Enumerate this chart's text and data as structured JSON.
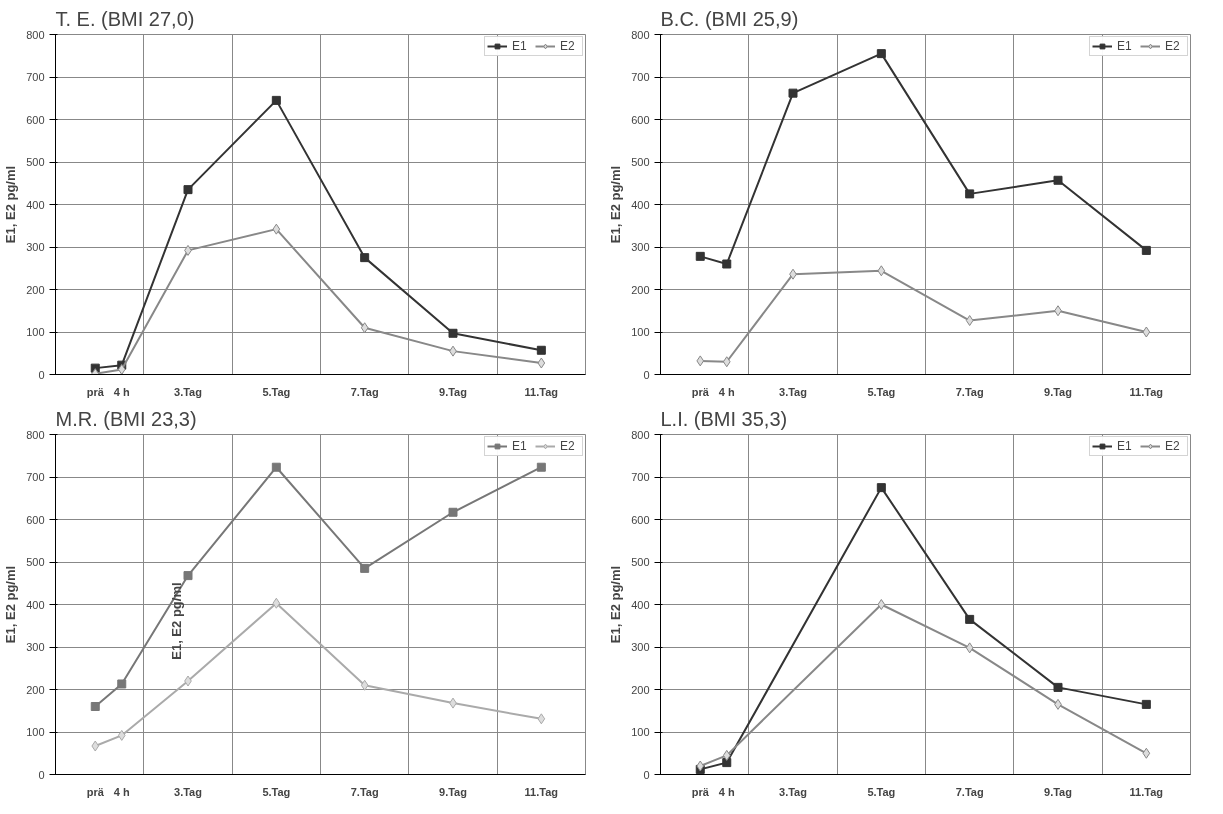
{
  "chart_data": [
    {
      "type": "line",
      "title": "T. E. (BMI 27,0)",
      "ylabel": "E1, E2 pg/ml",
      "categories": [
        "prä",
        "4 h",
        "3.Tag",
        "5.Tag",
        "7.Tag",
        "9.Tag",
        "11.Tag"
      ],
      "ylim": [
        0,
        800
      ],
      "yticks": [
        0,
        100,
        200,
        300,
        400,
        500,
        600,
        700,
        800
      ],
      "grid": true,
      "legend": "top right",
      "series": [
        {
          "name": "E1",
          "color": "#333333",
          "marker": "square",
          "values": [
            15,
            22,
            435,
            645,
            275,
            97,
            57
          ]
        },
        {
          "name": "E2",
          "color": "#888888",
          "marker": "diamond",
          "values": [
            2,
            12,
            292,
            342,
            110,
            55,
            27
          ]
        }
      ]
    },
    {
      "type": "line",
      "title": "B.C. (BMI 25,9)",
      "ylabel": "E1, E2 pg/ml",
      "categories": [
        "prä",
        "4 h",
        "3.Tag",
        "5.Tag",
        "7.Tag",
        "9.Tag",
        "11.Tag"
      ],
      "ylim": [
        0,
        800
      ],
      "yticks": [
        0,
        100,
        200,
        300,
        400,
        500,
        600,
        700,
        800
      ],
      "grid": true,
      "legend": "top right",
      "series": [
        {
          "name": "E1",
          "color": "#333333",
          "marker": "square",
          "values": [
            278,
            260,
            662,
            755,
            425,
            457,
            292
          ]
        },
        {
          "name": "E2",
          "color": "#888888",
          "marker": "diamond",
          "values": [
            32,
            30,
            236,
            244,
            127,
            150,
            100
          ]
        }
      ]
    },
    {
      "type": "line",
      "title": "M.R. (BMI 23,3)",
      "ylabel": "E1, E2 pg/ml",
      "annotations": [
        "E1, E2 pg/ml"
      ],
      "categories": [
        "prä",
        "4 h",
        "3.Tag",
        "5.Tag",
        "7.Tag",
        "9.Tag",
        "11.Tag"
      ],
      "ylim": [
        0,
        800
      ],
      "yticks": [
        0,
        100,
        200,
        300,
        400,
        500,
        600,
        700,
        800
      ],
      "grid": true,
      "legend": "top right",
      "series": [
        {
          "name": "E1",
          "color": "#777777",
          "marker": "square",
          "values": [
            160,
            213,
            468,
            723,
            485,
            617,
            723
          ]
        },
        {
          "name": "E2",
          "color": "#aaaaaa",
          "marker": "diamond",
          "values": [
            67,
            92,
            220,
            403,
            210,
            168,
            131
          ]
        }
      ]
    },
    {
      "type": "line",
      "title": "L.I. (BMI 35,3)",
      "ylabel": "E1, E2 pg/ml",
      "categories": [
        "prä",
        "4 h",
        "3.Tag",
        "5.Tag",
        "7.Tag",
        "9.Tag",
        "11.Tag"
      ],
      "ylim": [
        0,
        800
      ],
      "yticks": [
        0,
        100,
        200,
        300,
        400,
        500,
        600,
        700,
        800
      ],
      "grid": true,
      "legend": "top right",
      "series": [
        {
          "name": "E1",
          "color": "#333333",
          "marker": "square",
          "values": [
            12,
            28,
            null,
            675,
            365,
            205,
            165
          ]
        },
        {
          "name": "E2",
          "color": "#888888",
          "marker": "diamond",
          "values": [
            20,
            45,
            null,
            400,
            298,
            165,
            50
          ]
        }
      ]
    }
  ]
}
